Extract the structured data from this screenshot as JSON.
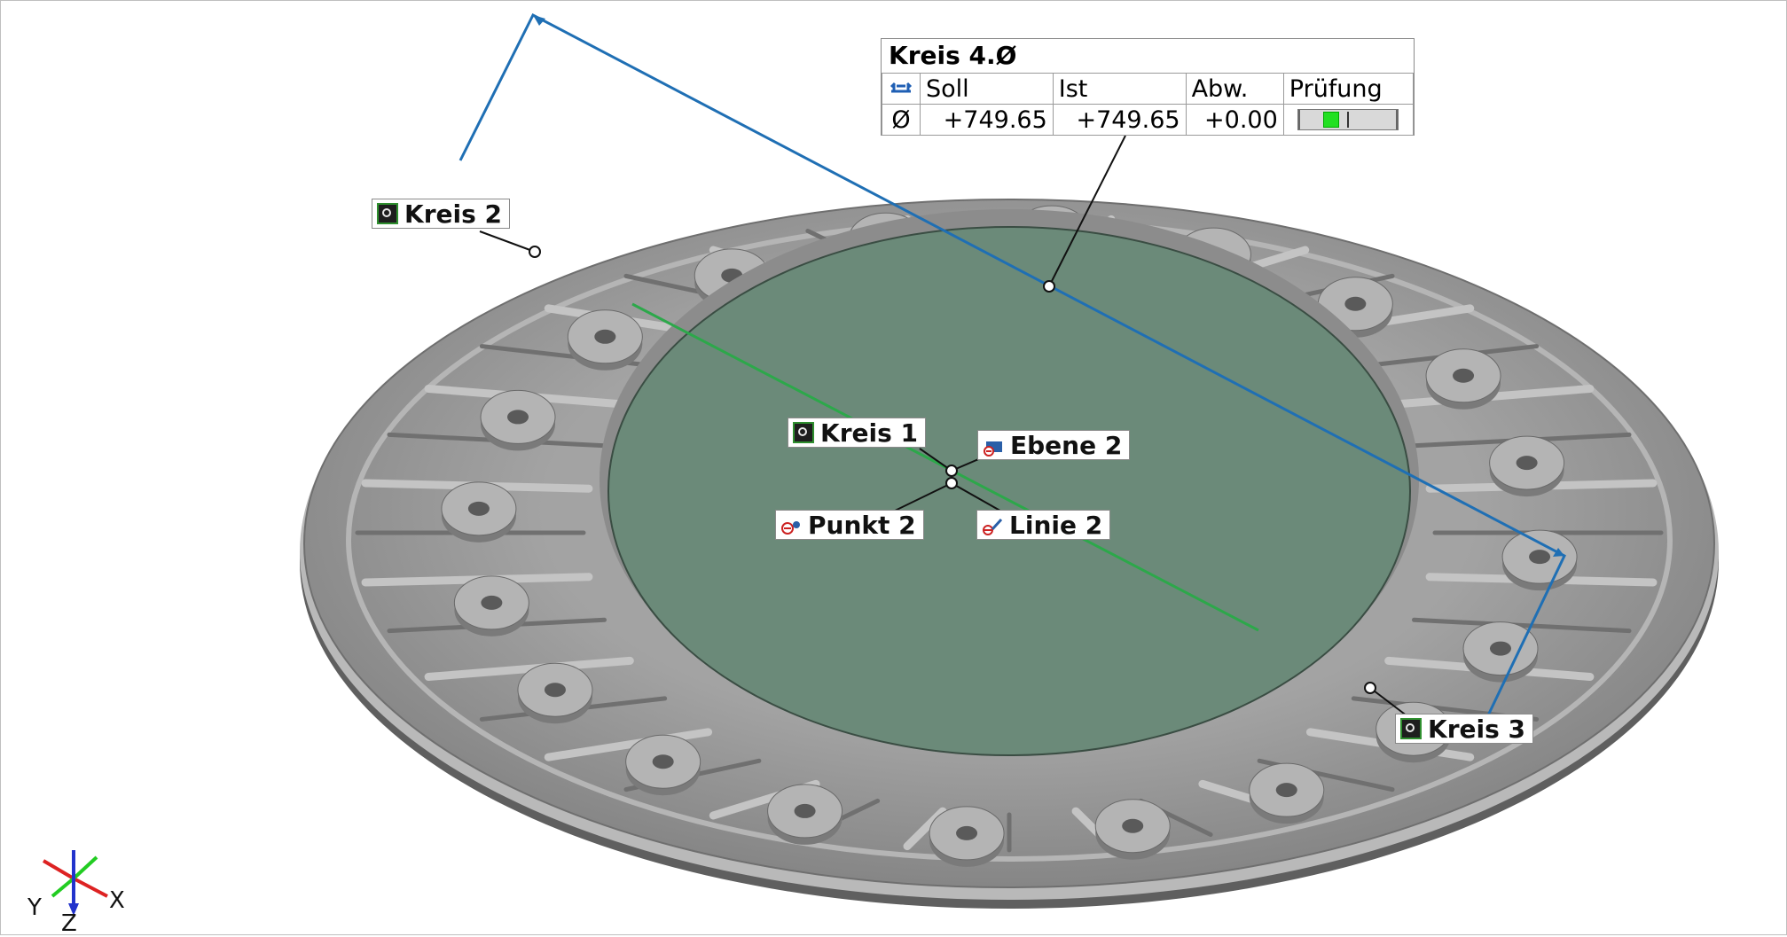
{
  "labels": {
    "kreis1": "Kreis 1",
    "kreis2": "Kreis 2",
    "kreis3": "Kreis 3",
    "ebene2": "Ebene 2",
    "punkt2": "Punkt 2",
    "linie2": "Linie 2"
  },
  "measurement": {
    "title": "Kreis 4.Ø",
    "headers": {
      "soll": "Soll",
      "ist": "Ist",
      "abw": "Abw.",
      "pruefung": "Prüfung"
    },
    "row": {
      "symbol": "Ø",
      "soll": "+749.65",
      "ist": "+749.65",
      "abw": "+0.00",
      "check_level": 0.5
    }
  },
  "axes": {
    "x": "X",
    "y": "Y",
    "z": "Z"
  },
  "colors": {
    "part": "#8e8e8e",
    "inner_plane": "#6b8a79",
    "diameter_line": "#1f6fb4",
    "line_feature": "#2ca84a",
    "check_ok": "#22e022"
  },
  "icons": {
    "circle_feature": "circle-feature-icon",
    "plane_feature": "plane-feature-icon",
    "point_feature": "point-feature-icon",
    "line_feature": "line-feature-icon",
    "diameter": "diameter-icon"
  }
}
